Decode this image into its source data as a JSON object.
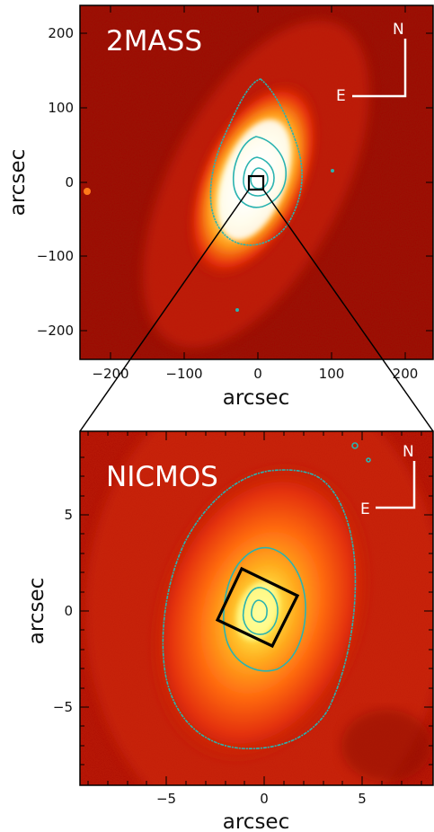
{
  "panels": [
    {
      "title": "2MASS",
      "xlabel": "arcsec",
      "ylabel": "arcsec",
      "xticks": [
        "−200",
        "−100",
        "0",
        "100",
        "200"
      ],
      "yticks": [
        "200",
        "100",
        "0",
        "−100",
        "−200"
      ],
      "compass": {
        "north": "N",
        "east": "E"
      },
      "colors": {
        "contour": "#2ab3b0",
        "box": "#000000"
      }
    },
    {
      "title": "NICMOS",
      "xlabel": "arcsec",
      "ylabel": "arcsec",
      "xticks": [
        "−5",
        "0",
        "5"
      ],
      "yticks": [
        "5",
        "0",
        "−5"
      ],
      "compass": {
        "north": "N",
        "east": "E"
      },
      "colors": {
        "contour": "#2ab3b0",
        "box": "#000000"
      }
    }
  ]
}
